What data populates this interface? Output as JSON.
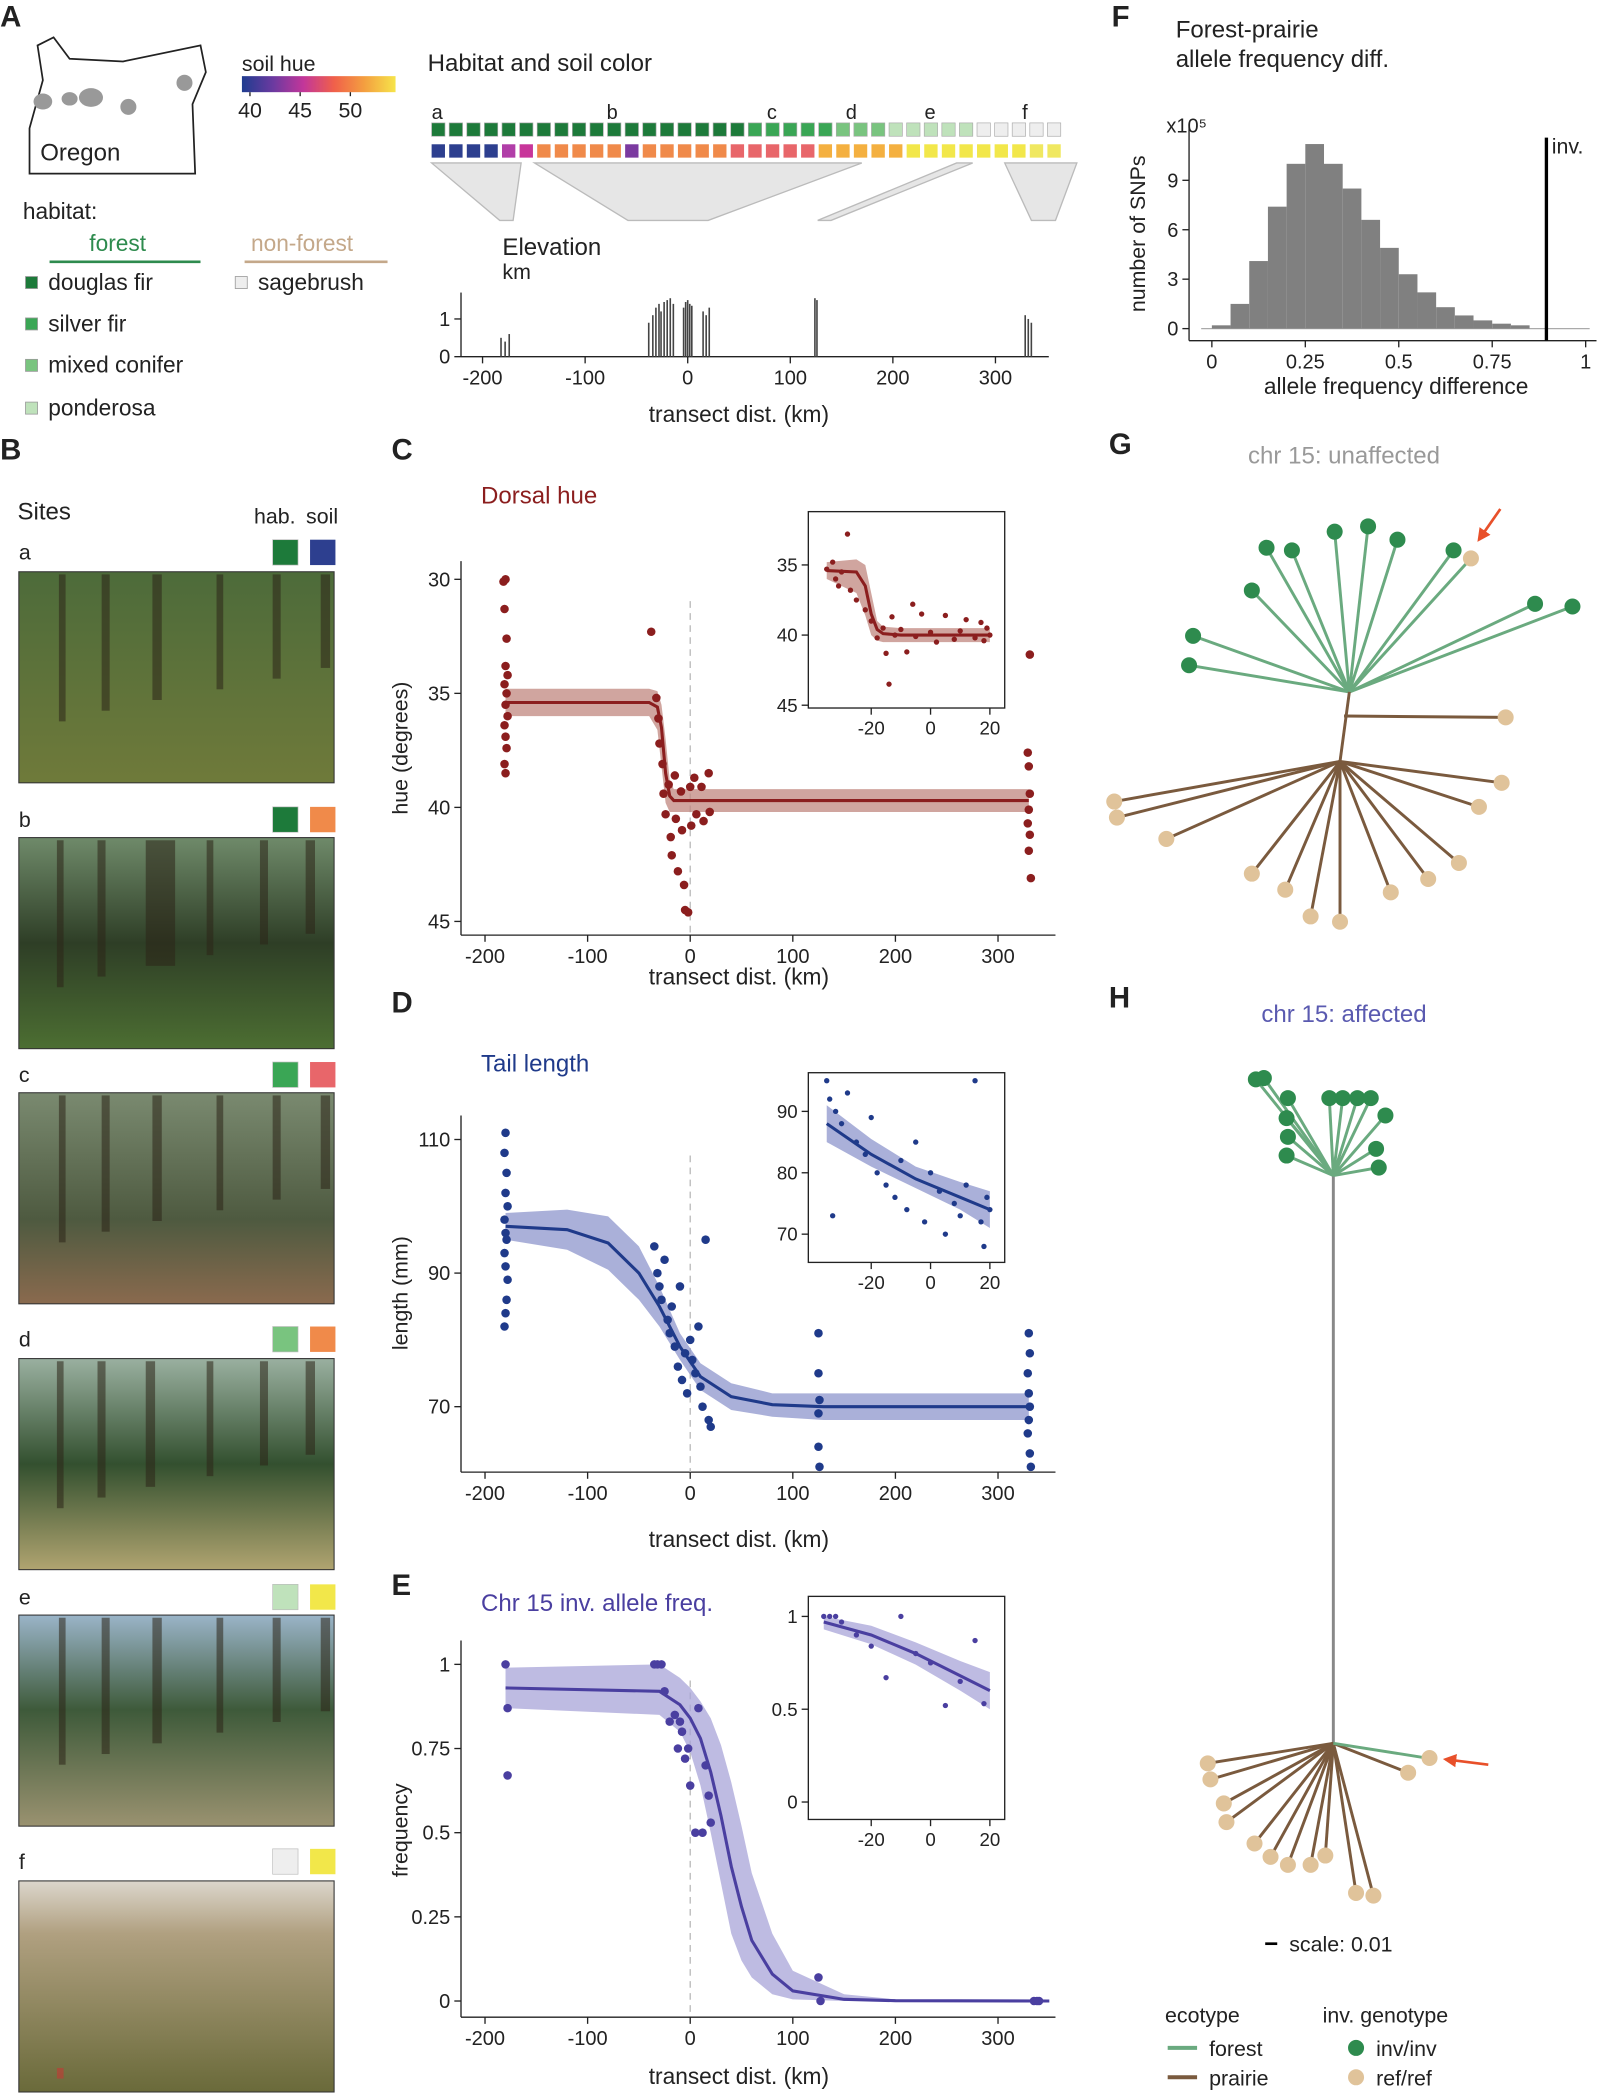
{
  "panel_a": {
    "label": "A",
    "map": {
      "label": "Oregon"
    },
    "soil_hue": {
      "title": "soil hue",
      "lim": [
        39.2,
        54.5
      ],
      "ticks": [
        40,
        45,
        50
      ],
      "colors": [
        "#1f3c8f",
        "#6a3aa0",
        "#c2369a",
        "#f0604a",
        "#f4a040",
        "#f6e44a"
      ]
    },
    "habitat": {
      "title": "habitat:",
      "forest": {
        "label": "forest",
        "color": "#2e8b4e"
      },
      "nonforest": {
        "label": "non-forest",
        "color": "#c4a88a"
      },
      "types": [
        {
          "name": "douglas fir",
          "color": "#1d7a3a"
        },
        {
          "name": "silver fir",
          "color": "#3aa655"
        },
        {
          "name": "mixed conifer",
          "color": "#79c47f"
        },
        {
          "name": "ponderosa",
          "color": "#bfe2bb"
        },
        {
          "name": "sagebrush",
          "color": "#eeeeee"
        }
      ]
    },
    "strip": {
      "title": "Habitat and soil color",
      "letters": [
        "a",
        "b",
        "c",
        "d",
        "e",
        "f"
      ],
      "habitat_colors": [
        "#1d7a3a",
        "#1d7a3a",
        "#1d7a3a",
        "#1d7a3a",
        "#1d7a3a",
        "#1d7a3a",
        "#1d7a3a",
        "#1d7a3a",
        "#1d7a3a",
        "#1d7a3a",
        "#1d7a3a",
        "#1d7a3a",
        "#1d7a3a",
        "#1d7a3a",
        "#1d7a3a",
        "#1d7a3a",
        "#1d7a3a",
        "#1d7a3a",
        "#3aa655",
        "#3aa655",
        "#3aa655",
        "#3aa655",
        "#3aa655",
        "#79c47f",
        "#79c47f",
        "#79c47f",
        "#bfe2bb",
        "#bfe2bb",
        "#bfe2bb",
        "#bfe2bb",
        "#bfe2bb",
        "#eeeeee",
        "#eeeeee",
        "#eeeeee",
        "#eeeeee",
        "#eeeeee"
      ],
      "soil_colors": [
        "#2d3f8f",
        "#2d3f8f",
        "#2d3f8f",
        "#2d3f8f",
        "#b13ea8",
        "#c8369a",
        "#f08a4a",
        "#f08a4a",
        "#f08a4a",
        "#f08a4a",
        "#f08a4a",
        "#7b3aa0",
        "#f08a4a",
        "#f08a4a",
        "#f08a4a",
        "#f08a4a",
        "#f08a4a",
        "#e8666a",
        "#e8666a",
        "#e8666a",
        "#e8666a",
        "#e8666a",
        "#f4b040",
        "#f4b040",
        "#f4b040",
        "#f4b040",
        "#f4b040",
        "#f2e74a",
        "#f2e74a",
        "#f2e74a",
        "#f2e74a",
        "#f2e74a",
        "#f2e74a",
        "#f2e74a",
        "#f0e860",
        "#f0e860"
      ]
    }
  },
  "panel_b": {
    "label": "B",
    "title": "Sites",
    "hab_label": "hab.",
    "soil_label": "soil",
    "sites": [
      {
        "letter": "a",
        "hab_color": "#1d7a3a",
        "soil_color": "#2d3f8f"
      },
      {
        "letter": "b",
        "hab_color": "#1d7a3a",
        "soil_color": "#f08a4a"
      },
      {
        "letter": "c",
        "hab_color": "#3aa655",
        "soil_color": "#e8666a"
      },
      {
        "letter": "d",
        "hab_color": "#79c47f",
        "soil_color": "#f08a4a"
      },
      {
        "letter": "e",
        "hab_color": "#bfe2bb",
        "soil_color": "#f2e74a"
      },
      {
        "letter": "f",
        "hab_color": "#eeeeee",
        "soil_color": "#f2e74a"
      }
    ]
  },
  "panel_labels": {
    "c": "C",
    "d": "D",
    "e": "E",
    "f": "F"
  },
  "chart_data": [
    {
      "type": "bar",
      "title": "Elevation",
      "subtitle": "km",
      "x_label": "transect dist. (km)",
      "color": "#444444",
      "x": [
        -182,
        -178,
        -174,
        -38,
        -34,
        -31,
        -28,
        -26,
        -23,
        -20,
        -17,
        -14,
        -4,
        -2,
        0,
        2,
        4,
        15,
        18,
        21,
        124,
        126,
        329,
        332,
        335
      ],
      "values": [
        0.5,
        0.4,
        0.6,
        0.9,
        1.1,
        1.3,
        1.4,
        1.2,
        1.45,
        1.5,
        1.55,
        1.4,
        1.3,
        1.45,
        1.5,
        1.4,
        1.35,
        1.2,
        1.1,
        1.3,
        1.55,
        1.5,
        1.1,
        1.0,
        0.9
      ],
      "xlim": [
        -221,
        352
      ],
      "xticks": [
        -200,
        -100,
        0,
        100,
        200,
        300
      ],
      "ylim": [
        0,
        1.7
      ],
      "yticks": [
        0,
        1
      ]
    },
    {
      "type": "scatter",
      "title": "Dorsal hue",
      "x_label": "transect dist. (km)",
      "y_label": "hue (degrees)",
      "color": "#8b1e1e",
      "band_color": "#c0877f",
      "dashed_x": 0,
      "x": [
        -182,
        -180,
        -181,
        -179,
        -180,
        -181,
        -179,
        -180,
        -178,
        -181,
        -180,
        -179,
        -181,
        -180,
        -178,
        -38,
        -33,
        -31,
        -30,
        -27,
        -26,
        -24,
        -21,
        -19,
        -18,
        -15,
        -14,
        -12,
        -9,
        -8,
        -6,
        -5,
        -2,
        0,
        1,
        4,
        6,
        11,
        13,
        18,
        19,
        329,
        330,
        331,
        330,
        329,
        331,
        330,
        332,
        331
      ],
      "values": [
        30.1,
        30.0,
        31.3,
        32.6,
        33.8,
        34.6,
        35.0,
        35.5,
        36.0,
        36.4,
        36.9,
        37.4,
        38.1,
        38.5,
        34.2,
        32.3,
        35.2,
        36.1,
        37.2,
        38.1,
        39.4,
        40.3,
        39.0,
        41.3,
        42.1,
        38.6,
        40.5,
        42.8,
        39.3,
        41.0,
        43.4,
        44.5,
        44.6,
        39.1,
        40.8,
        38.7,
        40.3,
        39.1,
        40.6,
        38.5,
        40.2,
        37.6,
        38.2,
        39.4,
        40.1,
        40.7,
        41.2,
        41.9,
        43.1,
        33.3
      ],
      "fit_x": [
        -180,
        -40,
        -32,
        -28,
        -24,
        -20,
        -16,
        -12,
        0,
        330
      ],
      "fit_values": [
        35.4,
        35.4,
        35.6,
        36.5,
        38.5,
        39.5,
        39.7,
        39.7,
        39.7,
        39.7
      ],
      "fit_lower": [
        34.8,
        34.8,
        34.9,
        35.5,
        37.0,
        38.8,
        39.2,
        39.2,
        39.2,
        39.2
      ],
      "fit_upper": [
        36.0,
        36.0,
        36.6,
        38.2,
        39.8,
        40.2,
        40.2,
        40.2,
        40.2,
        40.2
      ],
      "xlim": [
        -223.4,
        356
      ],
      "xticks": [
        -200,
        -100,
        0,
        100,
        200,
        300
      ],
      "ylim": [
        45.6,
        29.2
      ],
      "yticks": [
        30,
        35,
        40,
        45
      ]
    },
    {
      "type": "scatter",
      "color": "#8b1e1e",
      "band_color": "#c0877f",
      "x": [
        -35,
        -33,
        -32,
        -31,
        -30,
        -28,
        -27,
        -25,
        -22,
        -20,
        -18,
        -16,
        -15,
        -14,
        -13,
        -12,
        -10,
        -8,
        -6,
        -5,
        -3,
        0,
        2,
        5,
        8,
        10,
        12,
        15,
        17,
        18,
        19,
        20
      ],
      "values": [
        35.3,
        34.8,
        36.0,
        36.5,
        35.5,
        32.8,
        36.8,
        37.5,
        38.2,
        39.0,
        40.2,
        39.5,
        41.3,
        43.5,
        38.7,
        40.0,
        39.6,
        41.2,
        37.8,
        40.1,
        38.5,
        39.8,
        40.5,
        38.6,
        40.3,
        39.7,
        38.9,
        40.2,
        39.1,
        40.4,
        39.5,
        40.0
      ],
      "fit_x": [
        -35,
        -25,
        -22,
        -20,
        -18,
        -16,
        -10,
        20
      ],
      "fit_values": [
        35.4,
        35.5,
        36.5,
        38.5,
        39.6,
        39.9,
        40.0,
        40.0
      ],
      "fit_lower": [
        34.8,
        34.6,
        35.0,
        37.0,
        39.0,
        39.4,
        39.5,
        39.5
      ],
      "fit_upper": [
        36.0,
        37.0,
        38.6,
        40.0,
        40.4,
        40.5,
        40.5,
        40.5
      ],
      "xlim": [
        -41.2,
        25
      ],
      "xticks": [
        -20,
        0,
        20
      ],
      "ylim": [
        45.2,
        31.2
      ],
      "yticks": [
        35,
        40,
        45
      ]
    },
    {
      "type": "scatter",
      "title": "Tail length",
      "x_label": "transect dist. (km)",
      "y_label": "length (mm)",
      "color": "#1f3a8a",
      "band_color": "#8e95cc",
      "dashed_x": 0,
      "x": [
        -180,
        -181,
        -179,
        -180,
        -178,
        -181,
        -180,
        -179,
        -181,
        -180,
        -178,
        -179,
        -180,
        -181,
        -35,
        -32,
        -30,
        -28,
        -25,
        -22,
        -20,
        -18,
        -15,
        -12,
        -10,
        -8,
        -5,
        -3,
        0,
        2,
        5,
        8,
        10,
        12,
        15,
        18,
        20,
        125,
        125,
        126,
        125,
        125,
        126,
        330,
        331,
        329,
        330,
        331,
        330,
        329,
        331,
        332
      ],
      "values": [
        111,
        108,
        105,
        102,
        100,
        98,
        96,
        95,
        93,
        91,
        89,
        86,
        84,
        82,
        94,
        90,
        88,
        86,
        92,
        83,
        81,
        85,
        79,
        76,
        88,
        74,
        78,
        72,
        80,
        77,
        75,
        82,
        73,
        70,
        95,
        68,
        67,
        81,
        75,
        71,
        69,
        64,
        61,
        81,
        78,
        75,
        72,
        70,
        68,
        66,
        63,
        61
      ],
      "fit_x": [
        -180,
        -120,
        -80,
        -50,
        -30,
        -10,
        10,
        40,
        80,
        130,
        330
      ],
      "fit_values": [
        97,
        96.5,
        94.5,
        90,
        85,
        79,
        74.5,
        71.5,
        70.3,
        70,
        70
      ],
      "fit_lower": [
        95,
        93.5,
        90.5,
        86,
        82,
        77,
        72.5,
        69.5,
        68.5,
        68,
        68
      ],
      "fit_upper": [
        99,
        99.5,
        98.5,
        94,
        88,
        81,
        76.5,
        73.5,
        72,
        72,
        72
      ],
      "xlim": [
        -223.4,
        356
      ],
      "xticks": [
        -200,
        -100,
        0,
        100,
        200,
        300
      ],
      "ylim": [
        60.2,
        113.6
      ],
      "yticks": [
        70,
        90,
        110
      ]
    },
    {
      "type": "scatter",
      "color": "#1f3a8a",
      "band_color": "#8e95cc",
      "x": [
        -35,
        -34,
        -33,
        -32,
        -30,
        -28,
        -25,
        -22,
        -20,
        -18,
        -15,
        -12,
        -10,
        -8,
        -5,
        -2,
        0,
        3,
        5,
        8,
        10,
        12,
        15,
        17,
        18,
        19,
        20
      ],
      "values": [
        95,
        92,
        73,
        90,
        88,
        93,
        85,
        83,
        89,
        80,
        78,
        76,
        82,
        74,
        85,
        72,
        80,
        77,
        70,
        75,
        73,
        78,
        95,
        72,
        68,
        76,
        74
      ],
      "fit_x": [
        -35,
        -20,
        -5,
        10,
        20
      ],
      "fit_values": [
        88,
        83,
        79,
        76,
        74
      ],
      "fit_lower": [
        85,
        81,
        77.5,
        74,
        71
      ],
      "fit_upper": [
        91,
        85.5,
        81,
        78.5,
        77
      ],
      "xlim": [
        -41.2,
        25
      ],
      "xticks": [
        -20,
        0,
        20
      ],
      "ylim": [
        65.4,
        96.3
      ],
      "yticks": [
        70,
        80,
        90
      ]
    },
    {
      "type": "scatter",
      "title": "Chr 15 inv. allele freq.",
      "x_label": "transect dist. (km)",
      "y_label": "frequency",
      "color": "#4a3fa0",
      "band_color": "#a8a4d8",
      "dashed_x": 0,
      "x": [
        -180,
        -178,
        -178,
        -35,
        -32,
        -28,
        -25,
        -20,
        -15,
        -12,
        -10,
        -8,
        -5,
        -2,
        0,
        5,
        8,
        12,
        15,
        18,
        20,
        125,
        127,
        335,
        338,
        340
      ],
      "values": [
        1,
        0.87,
        0.67,
        1,
        1,
        1,
        0.92,
        0.83,
        0.85,
        0.75,
        0.83,
        0.8,
        0.72,
        0.75,
        0.64,
        0.5,
        0.87,
        0.5,
        0.7,
        0.61,
        0.53,
        0.07,
        0,
        0,
        0,
        0
      ],
      "fit_x": [
        -180,
        -30,
        -10,
        0,
        10,
        20,
        30,
        40,
        50,
        60,
        80,
        100,
        150,
        200,
        350
      ],
      "fit_values": [
        0.93,
        0.92,
        0.88,
        0.84,
        0.78,
        0.68,
        0.55,
        0.4,
        0.28,
        0.18,
        0.08,
        0.03,
        0.005,
        0.001,
        0
      ],
      "fit_lower": [
        0.87,
        0.85,
        0.8,
        0.74,
        0.64,
        0.5,
        0.35,
        0.2,
        0.12,
        0.07,
        0.02,
        0.005,
        0,
        0,
        0
      ],
      "fit_upper": [
        0.99,
        1.0,
        0.96,
        0.93,
        0.89,
        0.84,
        0.76,
        0.65,
        0.52,
        0.38,
        0.2,
        0.09,
        0.02,
        0.005,
        0
      ],
      "xlim": [
        -223.4,
        356
      ],
      "xticks": [
        -200,
        -100,
        0,
        100,
        200,
        300
      ],
      "ylim": [
        -0.048,
        1.071
      ],
      "yticks": [
        0,
        0.25,
        0.5,
        0.75,
        1
      ]
    },
    {
      "type": "scatter",
      "color": "#4a3fa0",
      "band_color": "#a8a4d8",
      "x": [
        -36,
        -34,
        -32,
        -30,
        -25,
        -20,
        -15,
        -10,
        -5,
        0,
        5,
        10,
        15,
        18
      ],
      "values": [
        1,
        1,
        1,
        0.97,
        0.9,
        0.84,
        0.67,
        1,
        0.8,
        0.75,
        0.52,
        0.65,
        0.87,
        0.53
      ],
      "fit_x": [
        -36,
        -20,
        -5,
        10,
        20
      ],
      "fit_values": [
        0.97,
        0.9,
        0.8,
        0.68,
        0.6
      ],
      "fit_lower": [
        0.93,
        0.85,
        0.74,
        0.6,
        0.5
      ],
      "fit_upper": [
        1.0,
        0.95,
        0.86,
        0.76,
        0.7
      ],
      "xlim": [
        -41.2,
        25
      ],
      "xticks": [
        -20,
        0,
        20
      ],
      "ylim": [
        -0.094,
        1.108
      ],
      "yticks": [
        0,
        0.5,
        1
      ]
    },
    {
      "type": "histogram",
      "title": "Forest-prairie",
      "subtitle": "allele frequency diff.",
      "x_label": "allele frequency difference",
      "y_label": "number of SNPs",
      "y_multiplier": "x10⁵",
      "color": "#808080",
      "bins": [
        0,
        0.05,
        0.1,
        0.15,
        0.2,
        0.25,
        0.3,
        0.35,
        0.4,
        0.45,
        0.5,
        0.55,
        0.6,
        0.65,
        0.7,
        0.75,
        0.8,
        0.85
      ],
      "values": [
        0.2,
        1.5,
        4.1,
        7.4,
        10.0,
        11.2,
        10.0,
        8.5,
        6.6,
        4.9,
        3.3,
        2.2,
        1.3,
        0.8,
        0.5,
        0.3,
        0.2
      ],
      "marker_x": 0.895,
      "marker_label": "inv.",
      "xlim": [
        -0.061,
        1.029
      ],
      "xticks": [
        0,
        0.25,
        0.5,
        0.75,
        1
      ],
      "ylim": [
        -0.73,
        12.24
      ],
      "yticks": [
        0,
        3,
        6,
        9
      ]
    }
  ],
  "panel_g": {
    "label": "G",
    "title": "chr 15: unaffected"
  },
  "panel_h": {
    "label": "H",
    "title": "chr 15: affected",
    "scale_label": "scale: 0.01",
    "legend": {
      "ecotype_title": "ecotype",
      "ecotypes": [
        {
          "name": "forest",
          "color": "#6aaa7f"
        },
        {
          "name": "prairie",
          "color": "#7a5a3e"
        }
      ],
      "genotype_title": "inv. genotype",
      "genotypes": [
        {
          "name": "inv/inv",
          "color": "#2e8b4e"
        },
        {
          "name": "ref/ref",
          "color": "#e0c39a"
        }
      ]
    }
  }
}
